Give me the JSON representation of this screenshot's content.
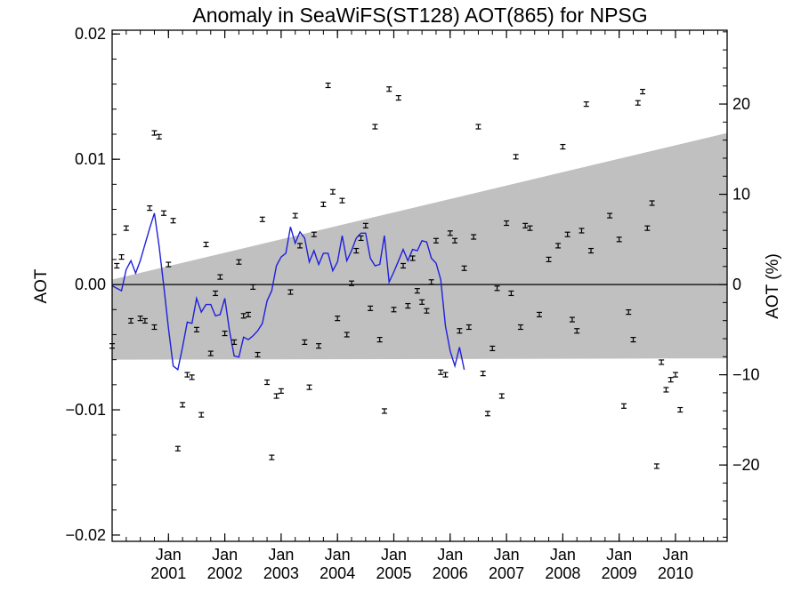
{
  "chart_data": {
    "type": "scatter",
    "title": "Anomaly in SeaWiFS(ST128) AOT(865) for NPSG",
    "ylabel": "AOT",
    "ylabel_right": "AOT (%)",
    "ylim": [
      -0.0205,
      0.0203
    ],
    "ylim_right": [
      -28.46,
      28.18
    ],
    "xlim": [
      "2000-01",
      "2010-12"
    ],
    "yticks": [
      {
        "value": 0.02,
        "label": "0.02"
      },
      {
        "value": 0.01,
        "label": "0.01"
      },
      {
        "value": 0.0,
        "label": "0.00"
      },
      {
        "value": -0.01,
        "label": "−0.01"
      },
      {
        "value": -0.02,
        "label": "−0.02"
      }
    ],
    "yticks_right": [
      {
        "value": 20,
        "label": "20"
      },
      {
        "value": 10,
        "label": "10"
      },
      {
        "value": 0,
        "label": "0"
      },
      {
        "value": -10,
        "label": "−10"
      },
      {
        "value": -20,
        "label": "−20"
      }
    ],
    "xticks": [
      {
        "month": "Jan",
        "year": "2001"
      },
      {
        "month": "Jan",
        "year": "2002"
      },
      {
        "month": "Jan",
        "year": "2003"
      },
      {
        "month": "Jan",
        "year": "2004"
      },
      {
        "month": "Jan",
        "year": "2005"
      },
      {
        "month": "Jan",
        "year": "2006"
      },
      {
        "month": "Jan",
        "year": "2007"
      },
      {
        "month": "Jan",
        "year": "2008"
      },
      {
        "month": "Jan",
        "year": "2009"
      },
      {
        "month": "Jan",
        "year": "2010"
      }
    ],
    "uncertainty_band": {
      "upper": [
        {
          "x": "2000-01",
          "y": 0.0004
        },
        {
          "x": "2010-12",
          "y": 0.0121
        }
      ],
      "lower": [
        {
          "x": "2000-01",
          "y": -0.006
        },
        {
          "x": "2010-12",
          "y": -0.0059
        }
      ]
    },
    "points": [
      {
        "x": "2000-01",
        "y": -0.0049
      },
      {
        "x": "2000-02",
        "y": 0.0015
      },
      {
        "x": "2000-03",
        "y": 0.0022
      },
      {
        "x": "2000-04",
        "y": 0.0045
      },
      {
        "x": "2000-05",
        "y": -0.0029
      },
      {
        "x": "2000-07",
        "y": -0.0027
      },
      {
        "x": "2000-08",
        "y": -0.0029
      },
      {
        "x": "2000-09",
        "y": 0.0061
      },
      {
        "x": "2000-10",
        "y": -0.0034
      },
      {
        "x": "2000-10",
        "y": 0.0121
      },
      {
        "x": "2000-11",
        "y": 0.0118
      },
      {
        "x": "2000-12",
        "y": 0.0057
      },
      {
        "x": "2001-01",
        "y": 0.0016
      },
      {
        "x": "2001-02",
        "y": 0.0051
      },
      {
        "x": "2001-03",
        "y": -0.0131
      },
      {
        "x": "2001-04",
        "y": -0.0096
      },
      {
        "x": "2001-05",
        "y": -0.0072
      },
      {
        "x": "2001-06",
        "y": -0.0074
      },
      {
        "x": "2001-07",
        "y": -0.0036
      },
      {
        "x": "2001-08",
        "y": -0.0104
      },
      {
        "x": "2001-09",
        "y": 0.0032
      },
      {
        "x": "2001-10",
        "y": -0.0055
      },
      {
        "x": "2001-11",
        "y": -0.0007
      },
      {
        "x": "2001-12",
        "y": 0.0006
      },
      {
        "x": "2002-01",
        "y": -0.0039
      },
      {
        "x": "2002-03",
        "y": -0.0046
      },
      {
        "x": "2002-04",
        "y": 0.0018
      },
      {
        "x": "2002-05",
        "y": -0.0025
      },
      {
        "x": "2002-06",
        "y": -0.0024
      },
      {
        "x": "2002-07",
        "y": -0.0002
      },
      {
        "x": "2002-08",
        "y": -0.0056
      },
      {
        "x": "2002-09",
        "y": 0.0052
      },
      {
        "x": "2002-10",
        "y": -0.0078
      },
      {
        "x": "2002-11",
        "y": -0.0138
      },
      {
        "x": "2002-12",
        "y": -0.0089
      },
      {
        "x": "2003-01",
        "y": -0.0085
      },
      {
        "x": "2003-03",
        "y": -0.0006
      },
      {
        "x": "2003-04",
        "y": 0.0055
      },
      {
        "x": "2003-05",
        "y": 0.0031
      },
      {
        "x": "2003-06",
        "y": -0.0046
      },
      {
        "x": "2003-07",
        "y": -0.0082
      },
      {
        "x": "2003-08",
        "y": 0.004
      },
      {
        "x": "2003-09",
        "y": -0.0049
      },
      {
        "x": "2003-10",
        "y": 0.0064
      },
      {
        "x": "2003-11",
        "y": 0.0159
      },
      {
        "x": "2003-12",
        "y": 0.0074
      },
      {
        "x": "2004-01",
        "y": -0.0027
      },
      {
        "x": "2004-02",
        "y": 0.0067
      },
      {
        "x": "2004-03",
        "y": -0.004
      },
      {
        "x": "2004-04",
        "y": 0.0001
      },
      {
        "x": "2004-05",
        "y": 0.0027
      },
      {
        "x": "2004-06",
        "y": 0.0037
      },
      {
        "x": "2004-07",
        "y": 0.0047
      },
      {
        "x": "2004-08",
        "y": -0.0019
      },
      {
        "x": "2004-09",
        "y": 0.0126
      },
      {
        "x": "2004-10",
        "y": -0.0044
      },
      {
        "x": "2004-11",
        "y": -0.0101
      },
      {
        "x": "2004-12",
        "y": 0.0156
      },
      {
        "x": "2005-01",
        "y": -0.002
      },
      {
        "x": "2005-02",
        "y": 0.0149
      },
      {
        "x": "2005-03",
        "y": 0.0015
      },
      {
        "x": "2005-04",
        "y": -0.0017
      },
      {
        "x": "2005-05",
        "y": 0.0021
      },
      {
        "x": "2005-06",
        "y": -0.0005
      },
      {
        "x": "2005-07",
        "y": -0.0014
      },
      {
        "x": "2005-08",
        "y": -0.0021
      },
      {
        "x": "2005-09",
        "y": 0.0002
      },
      {
        "x": "2005-10",
        "y": 0.0035
      },
      {
        "x": "2005-11",
        "y": -0.007
      },
      {
        "x": "2005-12",
        "y": -0.0072
      },
      {
        "x": "2006-01",
        "y": 0.0041
      },
      {
        "x": "2006-02",
        "y": 0.0035
      },
      {
        "x": "2006-03",
        "y": -0.0037
      },
      {
        "x": "2006-04",
        "y": 0.0013
      },
      {
        "x": "2006-05",
        "y": -0.0034
      },
      {
        "x": "2006-06",
        "y": 0.0038
      },
      {
        "x": "2006-07",
        "y": 0.0126
      },
      {
        "x": "2006-08",
        "y": -0.0071
      },
      {
        "x": "2006-09",
        "y": -0.0103
      },
      {
        "x": "2006-10",
        "y": -0.0051
      },
      {
        "x": "2006-11",
        "y": -0.0003
      },
      {
        "x": "2006-12",
        "y": -0.0089
      },
      {
        "x": "2007-01",
        "y": 0.0049
      },
      {
        "x": "2007-02",
        "y": -0.0007
      },
      {
        "x": "2007-03",
        "y": 0.0102
      },
      {
        "x": "2007-04",
        "y": -0.0034
      },
      {
        "x": "2007-05",
        "y": 0.0047
      },
      {
        "x": "2007-06",
        "y": 0.0045
      },
      {
        "x": "2007-08",
        "y": -0.0024
      },
      {
        "x": "2007-10",
        "y": 0.002
      },
      {
        "x": "2007-12",
        "y": 0.0031
      },
      {
        "x": "2008-01",
        "y": 0.011
      },
      {
        "x": "2008-02",
        "y": 0.004
      },
      {
        "x": "2008-03",
        "y": -0.0028
      },
      {
        "x": "2008-04",
        "y": -0.0037
      },
      {
        "x": "2008-05",
        "y": 0.0043
      },
      {
        "x": "2008-06",
        "y": 0.0144
      },
      {
        "x": "2008-07",
        "y": 0.0027
      },
      {
        "x": "2008-11",
        "y": 0.0055
      },
      {
        "x": "2009-01",
        "y": 0.0036
      },
      {
        "x": "2009-02",
        "y": -0.0097
      },
      {
        "x": "2009-03",
        "y": -0.0022
      },
      {
        "x": "2009-04",
        "y": -0.0044
      },
      {
        "x": "2009-05",
        "y": 0.0145
      },
      {
        "x": "2009-06",
        "y": 0.0154
      },
      {
        "x": "2009-07",
        "y": 0.0045
      },
      {
        "x": "2009-08",
        "y": 0.0065
      },
      {
        "x": "2009-09",
        "y": -0.0145
      },
      {
        "x": "2009-10",
        "y": -0.0062
      },
      {
        "x": "2009-11",
        "y": -0.0084
      },
      {
        "x": "2009-12",
        "y": -0.0076
      },
      {
        "x": "2010-01",
        "y": -0.0072
      },
      {
        "x": "2010-02",
        "y": -0.01
      }
    ],
    "smoothed_line": {
      "color": "#1f1fdc",
      "points": [
        {
          "x": "2000-01",
          "y": -0.0001
        },
        {
          "x": "2000-03",
          "y": -0.0005
        },
        {
          "x": "2000-04",
          "y": 0.0012
        },
        {
          "x": "2000-05",
          "y": 0.0019
        },
        {
          "x": "2000-06",
          "y": 0.0009
        },
        {
          "x": "2000-07",
          "y": 0.0019
        },
        {
          "x": "2000-09",
          "y": 0.0045
        },
        {
          "x": "2000-10",
          "y": 0.0057
        },
        {
          "x": "2000-11",
          "y": 0.0031
        },
        {
          "x": "2000-12",
          "y": -0.0001
        },
        {
          "x": "2001-01",
          "y": -0.0035
        },
        {
          "x": "2001-02",
          "y": -0.0065
        },
        {
          "x": "2001-03",
          "y": -0.0068
        },
        {
          "x": "2001-04",
          "y": -0.005
        },
        {
          "x": "2001-05",
          "y": -0.003
        },
        {
          "x": "2001-06",
          "y": -0.0031
        },
        {
          "x": "2001-07",
          "y": -0.0011
        },
        {
          "x": "2001-08",
          "y": -0.0022
        },
        {
          "x": "2001-09",
          "y": -0.0016
        },
        {
          "x": "2001-10",
          "y": -0.0016
        },
        {
          "x": "2001-11",
          "y": -0.0025
        },
        {
          "x": "2001-12",
          "y": -0.0024
        },
        {
          "x": "2002-01",
          "y": -0.0011
        },
        {
          "x": "2002-02",
          "y": -0.0037
        },
        {
          "x": "2002-03",
          "y": -0.0057
        },
        {
          "x": "2002-04",
          "y": -0.0058
        },
        {
          "x": "2002-05",
          "y": -0.0042
        },
        {
          "x": "2002-06",
          "y": -0.0044
        },
        {
          "x": "2002-07",
          "y": -0.0041
        },
        {
          "x": "2002-08",
          "y": -0.0037
        },
        {
          "x": "2002-09",
          "y": -0.0031
        },
        {
          "x": "2002-10",
          "y": -0.0013
        },
        {
          "x": "2002-11",
          "y": -0.0005
        },
        {
          "x": "2002-12",
          "y": 0.0015
        },
        {
          "x": "2003-01",
          "y": 0.0022
        },
        {
          "x": "2003-02",
          "y": 0.0025
        },
        {
          "x": "2003-03",
          "y": 0.0046
        },
        {
          "x": "2003-04",
          "y": 0.0033
        },
        {
          "x": "2003-05",
          "y": 0.0042
        },
        {
          "x": "2003-06",
          "y": 0.0037
        },
        {
          "x": "2003-07",
          "y": 0.0018
        },
        {
          "x": "2003-08",
          "y": 0.0027
        },
        {
          "x": "2003-09",
          "y": 0.0016
        },
        {
          "x": "2003-10",
          "y": 0.0025
        },
        {
          "x": "2003-11",
          "y": 0.0025
        },
        {
          "x": "2003-12",
          "y": 0.0011
        },
        {
          "x": "2004-01",
          "y": 0.0018
        },
        {
          "x": "2004-02",
          "y": 0.0039
        },
        {
          "x": "2004-03",
          "y": 0.0019
        },
        {
          "x": "2004-04",
          "y": 0.0027
        },
        {
          "x": "2004-05",
          "y": 0.0037
        },
        {
          "x": "2004-06",
          "y": 0.0041
        },
        {
          "x": "2004-07",
          "y": 0.0041
        },
        {
          "x": "2004-08",
          "y": 0.0021
        },
        {
          "x": "2004-09",
          "y": 0.0015
        },
        {
          "x": "2004-10",
          "y": 0.0016
        },
        {
          "x": "2004-11",
          "y": 0.0039
        },
        {
          "x": "2004-12",
          "y": 0.0002
        },
        {
          "x": "2005-01",
          "y": 0.001
        },
        {
          "x": "2005-02",
          "y": 0.0019
        },
        {
          "x": "2005-03",
          "y": 0.0028
        },
        {
          "x": "2005-04",
          "y": 0.0019
        },
        {
          "x": "2005-05",
          "y": 0.0028
        },
        {
          "x": "2005-06",
          "y": 0.0027
        },
        {
          "x": "2005-07",
          "y": 0.0035
        },
        {
          "x": "2005-08",
          "y": 0.0034
        },
        {
          "x": "2005-09",
          "y": 0.0021
        },
        {
          "x": "2005-10",
          "y": 0.0017
        },
        {
          "x": "2005-11",
          "y": 0.0004
        },
        {
          "x": "2005-12",
          "y": -0.0033
        },
        {
          "x": "2006-01",
          "y": -0.0053
        },
        {
          "x": "2006-02",
          "y": -0.0065
        },
        {
          "x": "2006-03",
          "y": -0.005
        },
        {
          "x": "2006-04",
          "y": -0.0068
        }
      ]
    }
  }
}
